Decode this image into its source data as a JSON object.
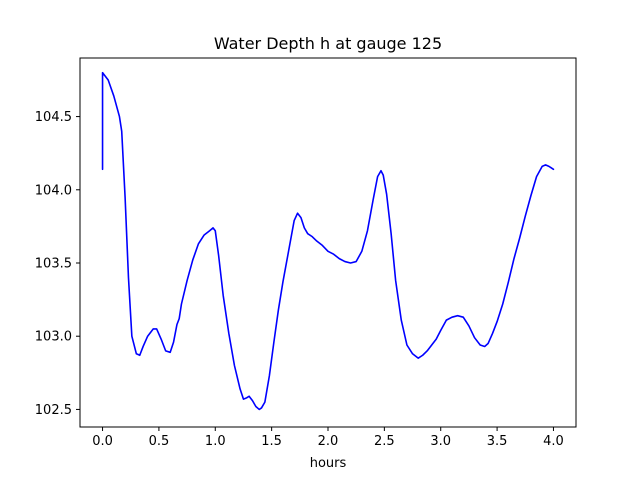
{
  "chart_data": {
    "type": "line",
    "title": "Water Depth h at gauge 125",
    "xlabel": "hours",
    "ylabel": "",
    "xlim": [
      -0.2,
      4.2
    ],
    "ylim": [
      102.38,
      104.9
    ],
    "xticks": [
      0.0,
      0.5,
      1.0,
      1.5,
      2.0,
      2.5,
      3.0,
      3.5,
      4.0
    ],
    "xtick_labels": [
      "0.0",
      "0.5",
      "1.0",
      "1.5",
      "2.0",
      "2.5",
      "3.0",
      "3.5",
      "4.0"
    ],
    "yticks": [
      102.5,
      103.0,
      103.5,
      104.0,
      104.5
    ],
    "ytick_labels": [
      "102.5",
      "103.0",
      "103.5",
      "104.0",
      "104.5"
    ],
    "grid": false,
    "series": [
      {
        "color": "#0000ff",
        "x": [
          0.0,
          0.0,
          0.01,
          0.05,
          0.1,
          0.15,
          0.17,
          0.2,
          0.23,
          0.26,
          0.3,
          0.33,
          0.36,
          0.4,
          0.45,
          0.48,
          0.52,
          0.56,
          0.6,
          0.63,
          0.66,
          0.68,
          0.7,
          0.75,
          0.8,
          0.85,
          0.9,
          0.95,
          0.98,
          1.0,
          1.03,
          1.07,
          1.12,
          1.17,
          1.22,
          1.25,
          1.28,
          1.3,
          1.33,
          1.36,
          1.39,
          1.41,
          1.44,
          1.48,
          1.52,
          1.56,
          1.6,
          1.65,
          1.7,
          1.73,
          1.76,
          1.79,
          1.82,
          1.86,
          1.9,
          1.95,
          2.0,
          2.05,
          2.1,
          2.15,
          2.2,
          2.25,
          2.3,
          2.35,
          2.4,
          2.44,
          2.47,
          2.49,
          2.52,
          2.56,
          2.6,
          2.65,
          2.7,
          2.75,
          2.8,
          2.84,
          2.88,
          2.92,
          2.96,
          3.0,
          3.05,
          3.1,
          3.15,
          3.2,
          3.25,
          3.3,
          3.35,
          3.39,
          3.42,
          3.46,
          3.5,
          3.55,
          3.6,
          3.65,
          3.7,
          3.75,
          3.8,
          3.85,
          3.9,
          3.93,
          3.96,
          3.98,
          4.0
        ],
        "y": [
          104.14,
          104.8,
          104.79,
          104.75,
          104.64,
          104.5,
          104.4,
          103.95,
          103.4,
          103.0,
          102.88,
          102.87,
          102.93,
          103.0,
          103.05,
          103.05,
          102.98,
          102.9,
          102.89,
          102.96,
          103.08,
          103.12,
          103.22,
          103.38,
          103.52,
          103.63,
          103.69,
          103.72,
          103.74,
          103.72,
          103.55,
          103.28,
          103.02,
          102.8,
          102.64,
          102.57,
          102.58,
          102.59,
          102.56,
          102.52,
          102.5,
          102.51,
          102.55,
          102.73,
          102.96,
          103.18,
          103.37,
          103.58,
          103.79,
          103.84,
          103.81,
          103.74,
          103.7,
          103.68,
          103.65,
          103.62,
          103.58,
          103.56,
          103.53,
          103.51,
          103.5,
          103.51,
          103.58,
          103.72,
          103.93,
          104.09,
          104.13,
          104.1,
          103.97,
          103.7,
          103.38,
          103.11,
          102.94,
          102.88,
          102.85,
          102.87,
          102.9,
          102.94,
          102.98,
          103.04,
          103.11,
          103.13,
          103.14,
          103.13,
          103.07,
          102.99,
          102.94,
          102.93,
          102.95,
          103.02,
          103.1,
          103.22,
          103.37,
          103.53,
          103.67,
          103.82,
          103.96,
          104.09,
          104.16,
          104.17,
          104.16,
          104.15,
          104.14
        ]
      }
    ]
  }
}
